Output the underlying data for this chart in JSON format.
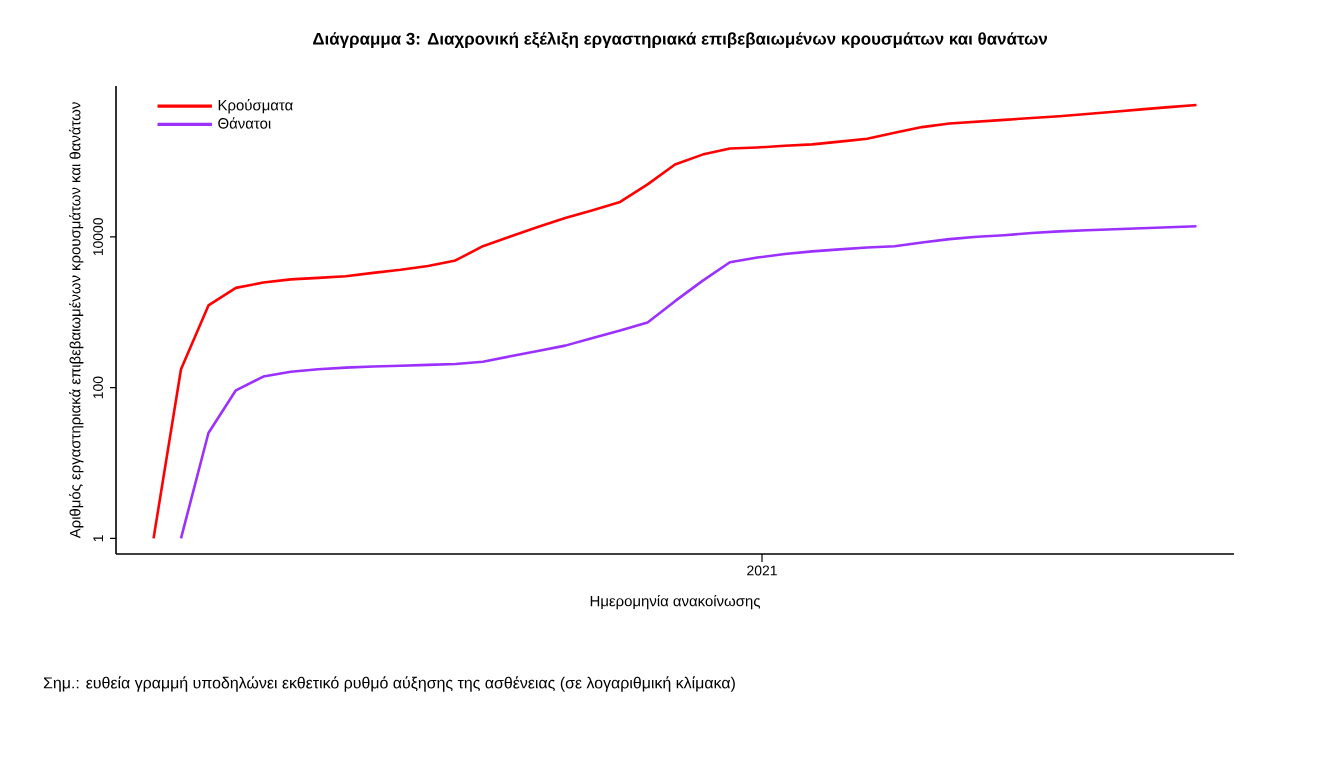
{
  "chart_data": {
    "type": "line",
    "title": "Διάγραμμα 3: Διαχρονική εξέλιξη εργαστηριακά επιβεβαιωμένων κρουσμάτων και θανάτων",
    "xlabel": "Ημερομηνία ανακοίνωσης",
    "ylabel": "Αριθμός εργαστηριακά επιβεβαιωμένων κρουσμάτων και θανάτων",
    "annotations": [
      "2021",
      "Σημ.: ευθεία γραμμή υποδηλώνει εκθετικό ρυθμό αύξησης της ασθένειας (σε λογαριθμική κλίμακα)"
    ],
    "log": "y",
    "grid": false,
    "legend": "top left",
    "marker": "none",
    "line_style": "solid",
    "ylim": [
      0.62,
      1000000
    ],
    "yticks": [
      {
        "value": 1,
        "label": "1"
      },
      {
        "value": 100,
        "label": "100"
      },
      {
        "value": 10000,
        "label": "10000"
      }
    ],
    "categories": [
      null,
      null,
      null,
      null,
      null,
      null,
      null,
      null,
      null,
      null,
      null,
      null,
      null,
      null,
      null,
      null,
      null,
      null,
      null,
      null,
      null,
      null,
      null,
      null,
      null,
      null,
      null,
      null,
      null,
      null,
      null,
      null,
      null,
      null,
      null,
      null,
      null,
      null,
      null
    ],
    "series": [
      {
        "name": "Κρούσματα",
        "color": "#ff0000",
        "values": [
          1,
          175,
          1230,
          2100,
          2470,
          2720,
          2850,
          3000,
          3320,
          3650,
          4100,
          4850,
          7500,
          10100,
          13500,
          17700,
          22500,
          29000,
          49500,
          91000,
          123000,
          148000,
          153000,
          161000,
          168000,
          183000,
          200000,
          240000,
          285000,
          318000,
          336000,
          355000,
          377000,
          398000,
          425000,
          455000,
          490000,
          525000,
          560000
        ]
      },
      {
        "name": "Θάνατοι",
        "color": "#9b30ff",
        "values": [
          null,
          1,
          25,
          92,
          140,
          162,
          175,
          184,
          190,
          195,
          200,
          205,
          220,
          260,
          305,
          360,
          455,
          570,
          730,
          1400,
          2600,
          4600,
          5300,
          5900,
          6400,
          6800,
          7200,
          7500,
          8400,
          9300,
          10000,
          10500,
          11200,
          11800,
          12200,
          12600,
          13000,
          13400,
          13800
        ]
      }
    ]
  }
}
